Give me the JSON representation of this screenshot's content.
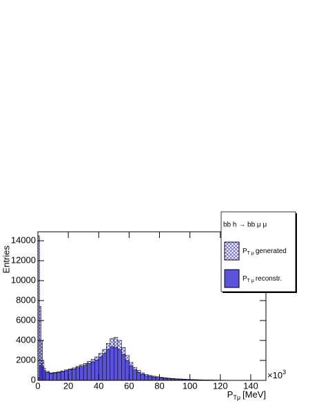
{
  "chart_data": {
    "type": "histogram",
    "y_title": "Entries",
    "x_title": {
      "main": "P",
      "sub": "Tμ",
      "rest": "[MeV]"
    },
    "x_multiplier": {
      "base": "×10",
      "exponent": "3"
    },
    "legend_title": "bb h → bb μ μ",
    "bins": [
      0,
      1,
      2,
      3,
      4,
      5,
      7.5,
      10,
      12.5,
      15,
      17.5,
      20,
      22.5,
      25,
      27.5,
      30,
      32.5,
      35,
      37.5,
      40,
      42.5,
      45,
      47.5,
      50,
      52.5,
      55,
      57.5,
      60,
      62.5,
      65,
      67.5,
      70,
      72.5,
      75,
      77.5,
      80,
      82.5,
      85,
      87.5,
      90,
      92.5,
      95,
      97.5,
      100,
      102.5,
      105,
      107.5,
      110,
      112.5,
      115,
      117.5,
      120,
      122.5,
      125,
      127.5,
      130,
      132.5,
      135,
      137.5,
      140,
      142.5,
      145,
      147.5,
      150
    ],
    "series": [
      {
        "name": "P",
        "name_sub": "T μ",
        "name_rest": "generated",
        "color": "#5b52dc",
        "hatched": true,
        "values": [
          14500,
          7400,
          4000,
          2000,
          1200,
          900,
          750,
          800,
          850,
          950,
          1050,
          1150,
          1250,
          1400,
          1550,
          1700,
          1900,
          2100,
          2350,
          2700,
          3100,
          3700,
          4200,
          4300,
          4000,
          3300,
          2500,
          1800,
          1300,
          1000,
          750,
          600,
          500,
          420,
          360,
          310,
          260,
          220,
          190,
          160,
          140,
          120,
          100,
          85,
          70,
          60,
          50,
          42,
          35,
          30,
          25,
          20,
          17,
          14,
          12,
          10,
          8,
          7,
          6,
          5,
          4,
          3,
          3
        ]
      },
      {
        "name": "P",
        "name_sub": "T μ",
        "name_rest": "reconstr.",
        "color": "#5b52dc",
        "hatched": false,
        "values": [
          300,
          1500,
          1700,
          1300,
          1000,
          800,
          700,
          750,
          800,
          880,
          970,
          1060,
          1150,
          1280,
          1400,
          1530,
          1700,
          1850,
          2050,
          2350,
          2700,
          3100,
          3350,
          3300,
          3100,
          2600,
          2000,
          1450,
          1050,
          800,
          600,
          480,
          400,
          340,
          290,
          250,
          210,
          180,
          150,
          130,
          110,
          95,
          80,
          68,
          57,
          48,
          40,
          34,
          28,
          24,
          20,
          16,
          14,
          11,
          9,
          8,
          6,
          5,
          4,
          4,
          3,
          2,
          2
        ]
      }
    ],
    "xlim": [
      0,
      150
    ],
    "xticks": [
      0,
      20,
      40,
      60,
      80,
      100,
      120,
      140
    ],
    "ylim": [
      0,
      14900
    ],
    "yticks": [
      0,
      2000,
      4000,
      6000,
      8000,
      10000,
      12000,
      14000
    ],
    "legend_position": "top-right"
  }
}
